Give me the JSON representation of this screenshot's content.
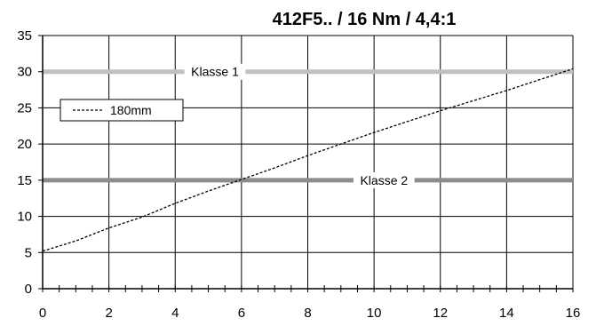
{
  "chart_data": {
    "type": "line",
    "title": "412F5.. / 16 Nm / 4,4:1",
    "xlabel": "",
    "ylabel": "",
    "xlim": [
      0,
      16
    ],
    "ylim": [
      0,
      35
    ],
    "x_ticks": [
      "0",
      "2",
      "4",
      "6",
      "8",
      "10",
      "12",
      "14",
      "16"
    ],
    "y_ticks": [
      "0",
      "5",
      "10",
      "15",
      "20",
      "25",
      "30",
      "35"
    ],
    "grid": true,
    "legend": {
      "placement": "top-left",
      "entries": [
        "180mm"
      ]
    },
    "series": [
      {
        "name": "180mm",
        "style": "dashed",
        "color": "#000000",
        "x": [
          0,
          1,
          2,
          3,
          4,
          5,
          6,
          7,
          8,
          9,
          10,
          11,
          12,
          13,
          14,
          15,
          16
        ],
        "values": [
          5.2,
          6.6,
          8.4,
          9.9,
          11.8,
          13.5,
          15.1,
          16.7,
          18.4,
          20.0,
          21.6,
          23.1,
          24.6,
          26.0,
          27.4,
          28.9,
          30.4
        ]
      }
    ],
    "reference_bands": [
      {
        "label": "Klasse 1",
        "y": 30,
        "color": "#c0c0c0"
      },
      {
        "label": "Klasse 2",
        "y": 15,
        "color": "#8c8c8c"
      }
    ]
  }
}
